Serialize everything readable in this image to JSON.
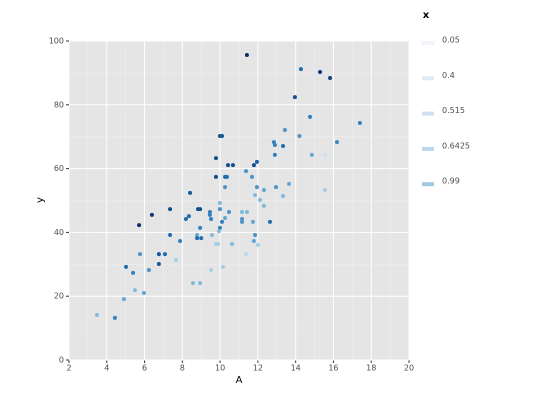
{
  "chart_data": {
    "type": "scatter",
    "x_label": "A",
    "y_label": "y",
    "xlim": [
      2,
      20
    ],
    "xticks": [
      2,
      4,
      6,
      8,
      10,
      12,
      14,
      16,
      18,
      20
    ],
    "ylim": [
      0,
      100
    ],
    "yticks": [
      0,
      20,
      40,
      60,
      80,
      100
    ],
    "grid": true,
    "legend_title": "x",
    "legend_position": "right",
    "legend_entries": [
      0.05,
      0.4,
      0.515,
      0.6425,
      0.99
    ],
    "legend_colors": [
      "#f1f5fa",
      "#dfebf6",
      "#cfe1f1",
      "#bdd7ec",
      "#9ecae1"
    ],
    "palette": [
      "#deebf7",
      "#6baed6",
      "#2171b5",
      "#08306b"
    ],
    "series": [
      {
        "name": "x",
        "x": [
          11.42,
          14.28,
          15.29,
          15.82,
          13.96,
          14.76,
          17.4,
          9.99,
          10.1,
          13.43,
          14.2,
          12.85,
          16.19,
          13.33,
          12.9,
          14.86,
          15.55,
          12.9,
          9.78,
          11.95,
          11.79,
          10.42,
          10.68,
          11.37,
          9.78,
          10.26,
          10.36,
          11.69,
          13.65,
          10.26,
          11.95,
          12.96,
          12.32,
          15.55,
          8.41,
          11.85,
          13.33,
          12.11,
          9.99,
          12.32,
          7.35,
          8.83,
          8.94,
          9.99,
          9.46,
          10.47,
          11.16,
          11.42,
          9.46,
          6.39,
          8.35,
          8.19,
          10.26,
          9.52,
          11.16,
          11.16,
          11.74,
          12.64,
          10.1,
          5.71,
          8.94,
          9.99,
          9.94,
          8.78,
          7.35,
          11.85,
          8.78,
          9.0,
          9.57,
          7.88,
          11.79,
          10.63,
          9.78,
          9.89,
          12.0,
          6.76,
          7.08,
          5.76,
          11.37,
          6.76,
          7.66,
          5.02,
          10.15,
          9.52,
          6.23,
          5.39,
          8.56,
          8.94,
          5.49,
          5.97,
          4.91,
          3.48,
          4.43
        ],
        "values": [
          95.6,
          91.2,
          90.3,
          88.4,
          82.4,
          76.2,
          74.3,
          70.2,
          70.2,
          72.1,
          70.2,
          68.3,
          68.3,
          67.1,
          67.4,
          64.3,
          64.3,
          64.3,
          63.3,
          62.1,
          61.1,
          61.1,
          61.1,
          59.2,
          57.4,
          57.4,
          57.4,
          57.4,
          55.2,
          54.2,
          54.2,
          54.2,
          53.3,
          53.3,
          52.4,
          51.7,
          51.4,
          50.2,
          49.2,
          48.3,
          47.3,
          47.3,
          47.3,
          47.3,
          46.4,
          46.4,
          46.4,
          46.4,
          45.5,
          45.5,
          45.1,
          44.2,
          44.5,
          44.2,
          44.2,
          43.3,
          43.3,
          43.3,
          43.3,
          42.3,
          41.4,
          41.4,
          40.4,
          39.2,
          39.2,
          39.2,
          38.2,
          38.2,
          39.2,
          37.3,
          37.3,
          36.4,
          36.4,
          36.4,
          36.1,
          33.2,
          33.2,
          33.2,
          33.2,
          30.1,
          31.3,
          29.2,
          29.2,
          28.2,
          28.2,
          27.3,
          24.1,
          24.1,
          21.9,
          21.0,
          19.1,
          14.1,
          13.2
        ],
        "color_values": [
          0.99,
          0.7,
          0.95,
          0.9,
          0.85,
          0.6,
          0.6,
          0.8,
          0.8,
          0.5,
          0.5,
          0.6,
          0.55,
          0.7,
          0.6,
          0.4,
          0.1,
          0.6,
          0.85,
          0.75,
          0.85,
          0.85,
          0.85,
          0.5,
          0.85,
          0.7,
          0.7,
          0.5,
          0.4,
          0.5,
          0.5,
          0.5,
          0.4,
          0.2,
          0.8,
          0.3,
          0.3,
          0.3,
          0.3,
          0.3,
          0.85,
          0.85,
          0.85,
          0.5,
          0.6,
          0.5,
          0.3,
          0.3,
          0.6,
          0.95,
          0.7,
          0.7,
          0.4,
          0.6,
          0.5,
          0.5,
          0.4,
          0.7,
          0.6,
          0.99,
          0.6,
          0.6,
          0.3,
          0.4,
          0.7,
          0.5,
          0.7,
          0.7,
          0.3,
          0.6,
          0.4,
          0.3,
          0.2,
          0.2,
          0.2,
          0.8,
          0.7,
          0.5,
          0.15,
          0.8,
          0.2,
          0.7,
          0.2,
          0.2,
          0.5,
          0.6,
          0.3,
          0.3,
          0.3,
          0.4,
          0.4,
          0.3,
          0.6
        ]
      }
    ]
  }
}
